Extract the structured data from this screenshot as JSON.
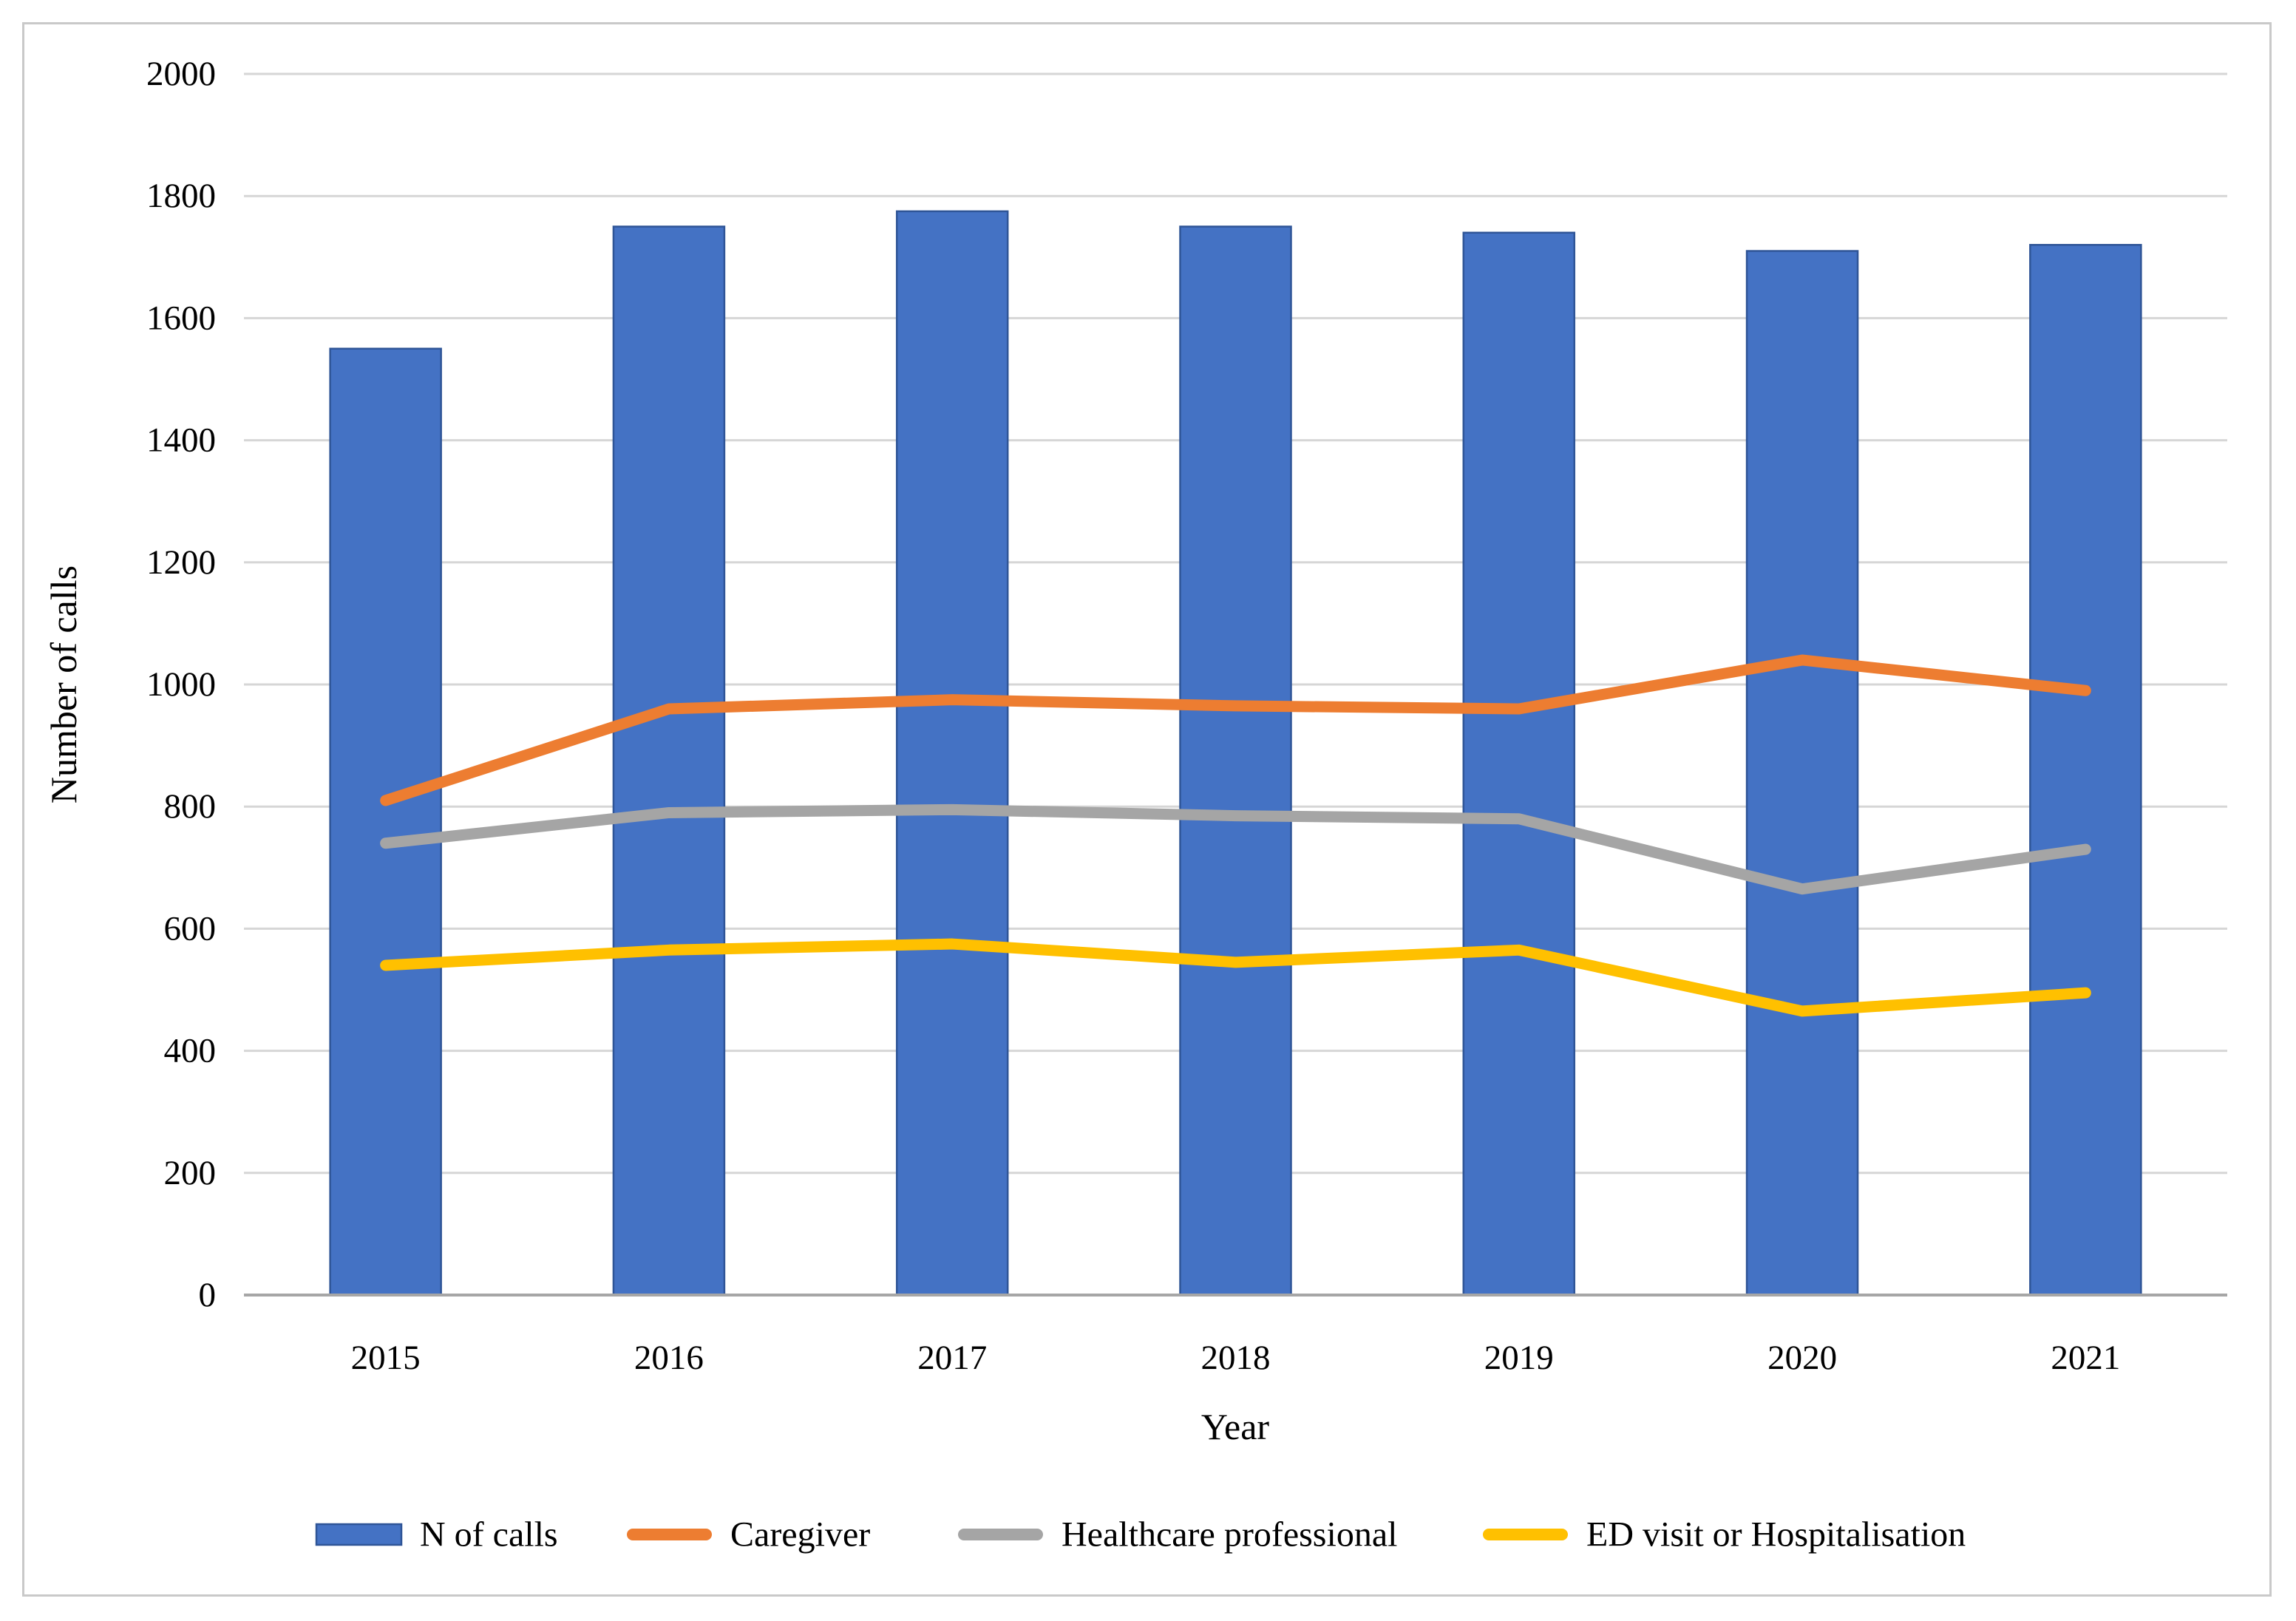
{
  "figure": {
    "background": "#ffffff",
    "border_color": "#c9c9c9",
    "gridline_color": "#d6d6d6",
    "axis_line_color": "#a6a6a6"
  },
  "chart_data": {
    "type": "bar",
    "subtype": "bar-with-line-overlays",
    "title": "",
    "xlabel": "Year",
    "ylabel": "Number of calls",
    "ylim": [
      0,
      2000
    ],
    "ytick_step": 200,
    "grid": "horizontal",
    "legend_position": "bottom",
    "categories": [
      "2015",
      "2016",
      "2017",
      "2018",
      "2019",
      "2020",
      "2021"
    ],
    "bar_series": {
      "name": "N of calls",
      "color": "#4472C4",
      "border_color": "#2f5597",
      "values": [
        1550,
        1750,
        1775,
        1750,
        1740,
        1710,
        1720
      ]
    },
    "line_series": [
      {
        "name": "Caregiver",
        "color": "#ED7D31",
        "values": [
          810,
          960,
          975,
          965,
          960,
          1040,
          990
        ]
      },
      {
        "name": "Healthcare professional",
        "color": "#A5A5A5",
        "values": [
          740,
          790,
          795,
          785,
          780,
          665,
          730
        ]
      },
      {
        "name": "ED visit or Hospitalisation",
        "color": "#FFC000",
        "values": [
          540,
          565,
          575,
          545,
          565,
          465,
          495
        ]
      }
    ]
  }
}
